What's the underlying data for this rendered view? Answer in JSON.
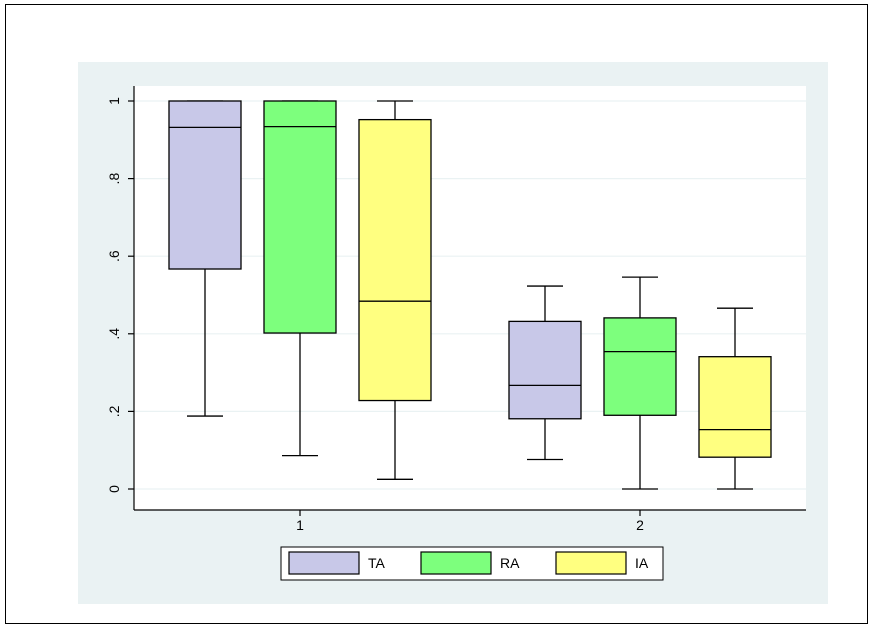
{
  "chart_data": {
    "type": "box",
    "categories": [
      "1",
      "2"
    ],
    "ylim": [
      0,
      1
    ],
    "yticks": [
      0,
      0.2,
      0.4,
      0.6,
      0.8,
      1
    ],
    "ytick_labels": [
      "0",
      ".2",
      ".4",
      ".6",
      ".8",
      "1"
    ],
    "grid": true,
    "legend_position": "bottom",
    "series": [
      {
        "name": "TA",
        "color": "#c8c8e8",
        "boxes": [
          {
            "category": "1",
            "min": 0.188,
            "q1": 0.567,
            "median": 0.932,
            "q3": 1.0,
            "max": 1.0
          },
          {
            "category": "2",
            "min": 0.076,
            "q1": 0.181,
            "median": 0.267,
            "q3": 0.432,
            "max": 0.523
          }
        ]
      },
      {
        "name": "RA",
        "color": "#7dff7d",
        "boxes": [
          {
            "category": "1",
            "min": 0.086,
            "q1": 0.402,
            "median": 0.934,
            "q3": 1.0,
            "max": 1.0
          },
          {
            "category": "2",
            "min": 0.0,
            "q1": 0.19,
            "median": 0.354,
            "q3": 0.441,
            "max": 0.546
          }
        ]
      },
      {
        "name": "IA",
        "color": "#ffff80",
        "boxes": [
          {
            "category": "1",
            "min": 0.025,
            "q1": 0.228,
            "median": 0.484,
            "q3": 0.952,
            "max": 1.0
          },
          {
            "category": "2",
            "min": 0.0,
            "q1": 0.082,
            "median": 0.153,
            "q3": 0.341,
            "max": 0.466
          }
        ]
      }
    ]
  }
}
